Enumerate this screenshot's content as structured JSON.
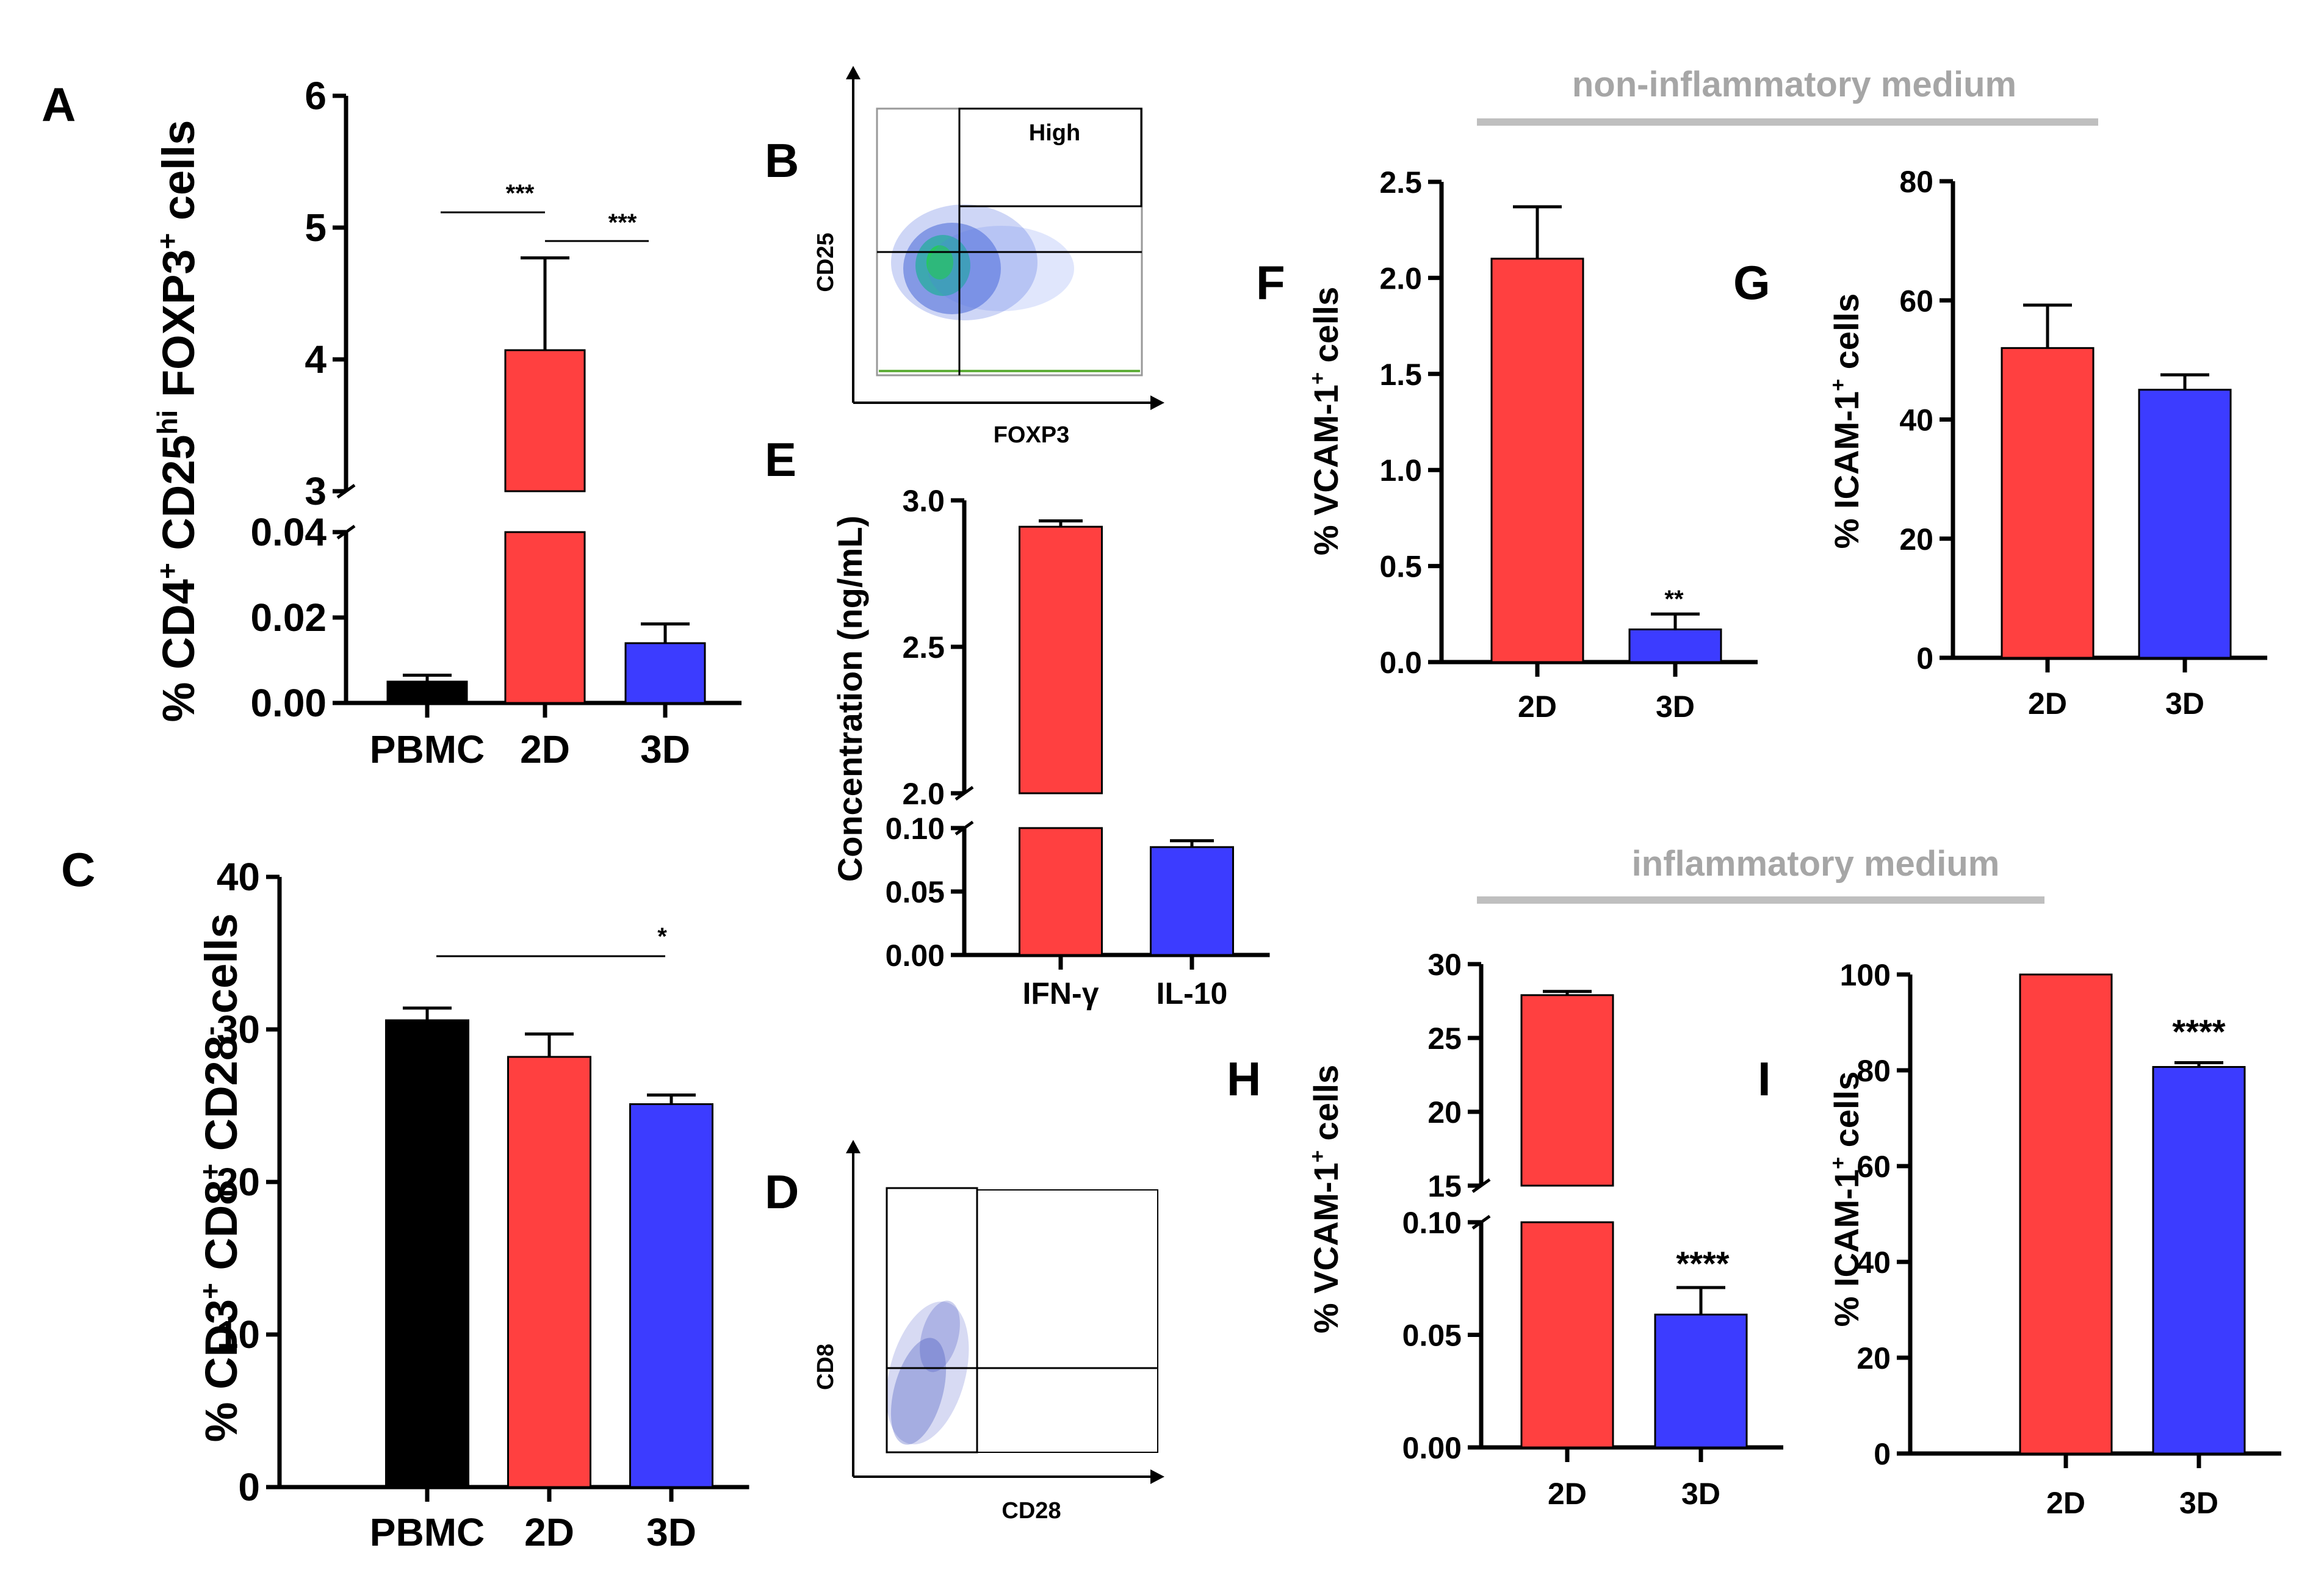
{
  "headers": {
    "non_inflammatory": "non-inflammatory medium",
    "inflammatory": "inflammatory medium"
  },
  "colors": {
    "PBMC": "#000000",
    "2D": "#ff4040",
    "3D": "#3c3cff"
  },
  "chart_data": [
    {
      "panel": "A",
      "type": "bar",
      "broken_axis": true,
      "ylabel": {
        "a": "% CD4",
        "a_sup": "+",
        "b": " CD25",
        "b_sup": "hi",
        "c": " FOXP3",
        "c_sup": "+",
        "d": " cells"
      },
      "categories": [
        "PBMC",
        "2D",
        "3D"
      ],
      "values": [
        0.005,
        4.07,
        0.014
      ],
      "errors": [
        0.0015,
        0.7,
        0.0045
      ],
      "ylim_lower": [
        0,
        0.04
      ],
      "yticks_lower": [
        "0.00",
        "0.02",
        "0.04"
      ],
      "ylim_upper": [
        3,
        6
      ],
      "yticks_upper": [
        "3",
        "4",
        "5",
        "6"
      ],
      "annotations": [
        "***",
        "***"
      ]
    },
    {
      "panel": "B",
      "type": "scatter",
      "xlabel": "FOXP3",
      "ylabel": "CD25",
      "gate_label": "High"
    },
    {
      "panel": "C",
      "type": "bar",
      "ylabel": {
        "a": "% CD3",
        "a_sup": "+",
        "b": " CD8",
        "b_sup": "+",
        "c": " CD28",
        "c_sup": "-",
        "d": " cells"
      },
      "categories": [
        "PBMC",
        "2D",
        "3D"
      ],
      "values": [
        30.6,
        28.2,
        25.1
      ],
      "errors": [
        0.8,
        1.5,
        0.6
      ],
      "ylim": [
        0,
        40
      ],
      "yticks": [
        "0",
        "10",
        "20",
        "30",
        "40"
      ],
      "annotations": [
        "*"
      ]
    },
    {
      "panel": "D",
      "type": "scatter",
      "xlabel": "CD28",
      "ylabel": "CD8"
    },
    {
      "panel": "E",
      "type": "bar",
      "broken_axis": true,
      "ylabel": "Concentration (ng/mL)",
      "categories": [
        "IFN-γ",
        "IL-10"
      ],
      "values": [
        2.91,
        0.085
      ],
      "errors": [
        0.02,
        0.005
      ],
      "ylim_lower": [
        0,
        0.1
      ],
      "yticks_lower": [
        "0.00",
        "0.05",
        "0.10"
      ],
      "ylim_upper": [
        2,
        3
      ],
      "yticks_upper": [
        "2.0",
        "2.5",
        "3.0"
      ]
    },
    {
      "panel": "F",
      "type": "bar",
      "ylabel": {
        "a": "% VCAM-1",
        "a_sup": "+",
        "d": " cells"
      },
      "categories": [
        "2D",
        "3D"
      ],
      "values": [
        2.1,
        0.17
      ],
      "errors": [
        0.27,
        0.08
      ],
      "ylim": [
        0,
        2.5
      ],
      "yticks": [
        "0.0",
        "0.5",
        "1.0",
        "1.5",
        "2.0",
        "2.5"
      ],
      "annotations": [
        "**"
      ]
    },
    {
      "panel": "G",
      "type": "bar",
      "ylabel": {
        "a": "% ICAM-1",
        "a_sup": "+",
        "d": " cells"
      },
      "categories": [
        "2D",
        "3D"
      ],
      "values": [
        52,
        45
      ],
      "errors": [
        7.2,
        2.5
      ],
      "ylim": [
        0,
        80
      ],
      "yticks": [
        "0",
        "20",
        "40",
        "60",
        "80"
      ]
    },
    {
      "panel": "H",
      "type": "bar",
      "broken_axis": true,
      "ylabel": {
        "a": "% VCAM-1",
        "a_sup": "+",
        "d": " cells"
      },
      "categories": [
        "2D",
        "3D"
      ],
      "values": [
        27.9,
        0.059
      ],
      "errors": [
        0.25,
        0.012
      ],
      "ylim_lower": [
        0,
        0.1
      ],
      "yticks_lower": [
        "0.00",
        "0.05",
        "0.10"
      ],
      "ylim_upper": [
        15,
        30
      ],
      "yticks_upper": [
        "15",
        "20",
        "25",
        "30"
      ],
      "annotations": [
        "****"
      ]
    },
    {
      "panel": "I",
      "type": "bar",
      "ylabel": {
        "a": "% ICAM-1",
        "a_sup": "+",
        "d": " cells"
      },
      "categories": [
        "2D",
        "3D"
      ],
      "values": [
        100,
        80.7
      ],
      "errors": [
        0,
        0.9
      ],
      "ylim": [
        0,
        100
      ],
      "yticks": [
        "0",
        "20",
        "40",
        "60",
        "80",
        "100"
      ],
      "annotations": [
        "****"
      ]
    }
  ]
}
